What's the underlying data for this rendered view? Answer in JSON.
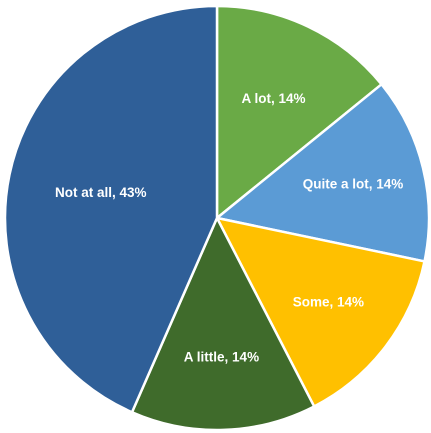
{
  "chart_data": {
    "type": "pie",
    "slices": [
      {
        "label": "A lot",
        "value": 14,
        "color": "#6aaa46"
      },
      {
        "label": "Quite a lot",
        "value": 14,
        "color": "#5b9bd5"
      },
      {
        "label": "Some",
        "value": 14,
        "color": "#ffc000"
      },
      {
        "label": "A little",
        "value": 14,
        "color": "#3f6b2b"
      },
      {
        "label": "Not at all",
        "value": 43,
        "color": "#2f5f98"
      }
    ],
    "data_labels": [
      "A lot, 14%",
      "Quite a lot, 14%",
      "Some, 14%",
      "A little, 14%",
      "Not at all, 43%"
    ],
    "start_angle_deg": 0,
    "direction": "clockwise",
    "border_color": "#ffffff"
  }
}
